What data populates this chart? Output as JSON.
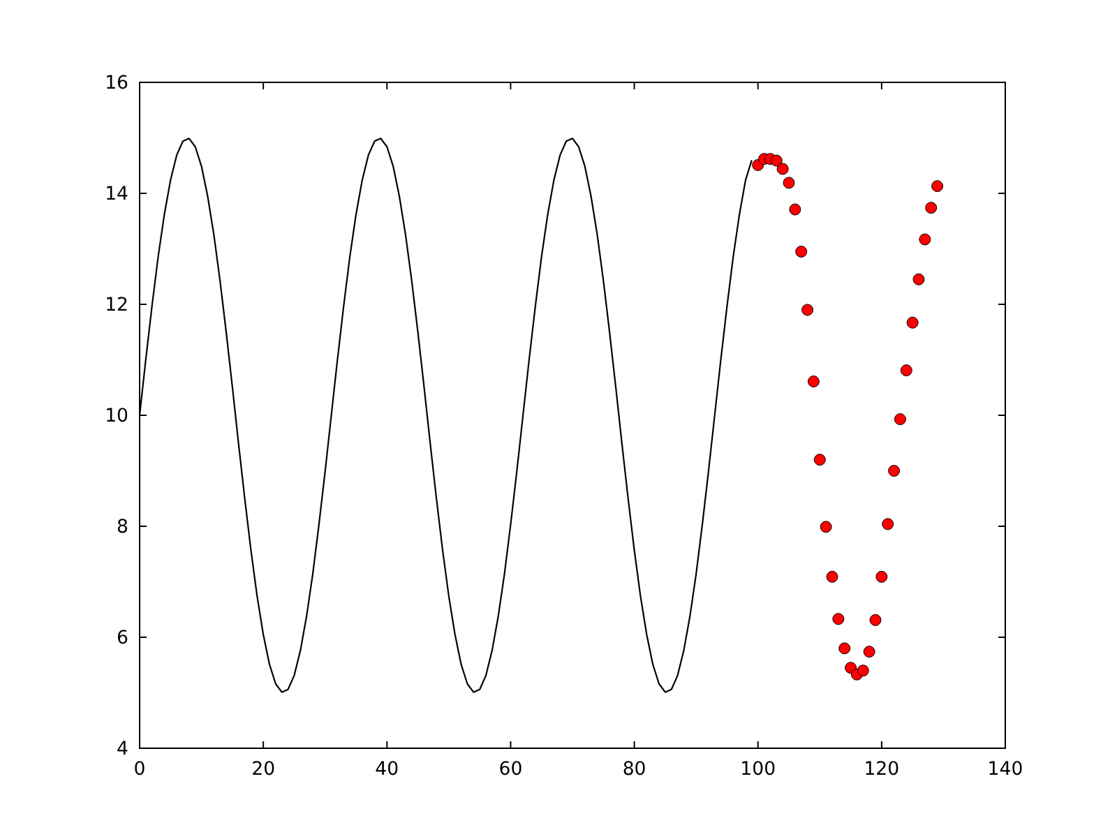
{
  "chart_data": {
    "type": "line",
    "xlim": [
      0,
      140
    ],
    "xticks": [
      0,
      20,
      40,
      60,
      80,
      100,
      120,
      140
    ],
    "ylim": [
      4,
      16
    ],
    "yticks": [
      4,
      6,
      8,
      10,
      12,
      14,
      16
    ],
    "series": [
      {
        "color": "#000000",
        "x": [
          0,
          1,
          2,
          3,
          4,
          5,
          6,
          7,
          8,
          9,
          10,
          11,
          12,
          13,
          14,
          15,
          16,
          17,
          18,
          19,
          20,
          21,
          22,
          23,
          24,
          25,
          26,
          27,
          28,
          29,
          30,
          31,
          32,
          33,
          34,
          35,
          36,
          37,
          38,
          39,
          40,
          41,
          42,
          43,
          44,
          45,
          46,
          47,
          48,
          49,
          50,
          51,
          52,
          53,
          54,
          55,
          56,
          57,
          58,
          59,
          60,
          61,
          62,
          63,
          64,
          65,
          66,
          67,
          68,
          69,
          70,
          71,
          72,
          73,
          74,
          75,
          76,
          77,
          78,
          79,
          80,
          81,
          82,
          83,
          84,
          85,
          86,
          87,
          88,
          89,
          90,
          91,
          92,
          93,
          94,
          95,
          96,
          97,
          98,
          99
        ],
        "values": [
          10,
          11.01,
          11.97,
          12.86,
          13.62,
          14.24,
          14.69,
          14.94,
          14.99,
          14.84,
          14.49,
          13.95,
          13.26,
          12.43,
          11.5,
          10.51,
          9.49,
          8.5,
          7.57,
          6.74,
          6.05,
          5.51,
          5.16,
          5.01,
          5.06,
          5.31,
          5.76,
          6.38,
          7.14,
          8.03,
          8.99,
          10,
          11.01,
          11.97,
          12.86,
          13.62,
          14.24,
          14.69,
          14.94,
          14.99,
          14.84,
          14.49,
          13.95,
          13.26,
          12.43,
          11.5,
          10.51,
          9.49,
          8.5,
          7.57,
          6.74,
          6.05,
          5.51,
          5.16,
          5.01,
          5.06,
          5.31,
          5.76,
          6.38,
          7.14,
          8.03,
          8.99,
          10,
          11.01,
          11.97,
          12.86,
          13.62,
          14.24,
          14.69,
          14.94,
          14.99,
          14.84,
          14.49,
          13.95,
          13.26,
          12.43,
          11.5,
          10.51,
          9.49,
          8.5,
          7.57,
          6.74,
          6.05,
          5.51,
          5.16,
          5.01,
          5.06,
          5.31,
          5.76,
          6.38,
          7.14,
          8.03,
          8.99,
          10,
          11.01,
          11.97,
          12.86,
          13.62,
          14.24,
          14.6
        ]
      },
      {
        "type": "scatter",
        "color": "#ff0000",
        "marker": "circle",
        "x": [
          100,
          101,
          102,
          103,
          104,
          105,
          106,
          107,
          108,
          109,
          110,
          111,
          112,
          113,
          114,
          115,
          116,
          117,
          118,
          119,
          120,
          121,
          122,
          123,
          124,
          125,
          126,
          127,
          128,
          129
        ],
        "values": [
          14.51,
          14.62,
          14.62,
          14.59,
          14.44,
          14.19,
          13.71,
          12.95,
          11.9,
          10.61,
          9.2,
          7.99,
          7.09,
          6.33,
          5.8,
          5.45,
          5.33,
          5.4,
          5.74,
          6.31,
          7.09,
          8.04,
          9,
          9.93,
          10.81,
          11.67,
          12.45,
          13.17,
          13.74,
          14.13
        ]
      }
    ]
  }
}
